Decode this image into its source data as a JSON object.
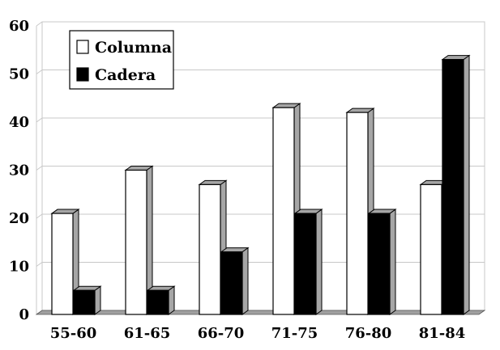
{
  "chart_data": {
    "type": "bar",
    "style": "3d",
    "categories": [
      "55-60",
      "61-65",
      "66-70",
      "71-75",
      "76-80",
      "81-84"
    ],
    "series": [
      {
        "name": "Columna",
        "color": "#ffffff",
        "values": [
          21,
          30,
          27,
          43,
          42,
          27
        ]
      },
      {
        "name": "Cadera",
        "color": "#000000",
        "values": [
          5,
          5,
          13,
          21,
          21,
          53
        ]
      }
    ],
    "ylim": [
      0,
      60
    ],
    "yticks": [
      "0",
      "10",
      "20",
      "30",
      "40",
      "50",
      "60"
    ],
    "grid": true,
    "legend_position": "top-left",
    "colors": {
      "bar_side": "#a6a6a6",
      "floor": "#a0a0a0",
      "grid": "#c8c8c8",
      "frame": "#c8c8c8"
    }
  }
}
